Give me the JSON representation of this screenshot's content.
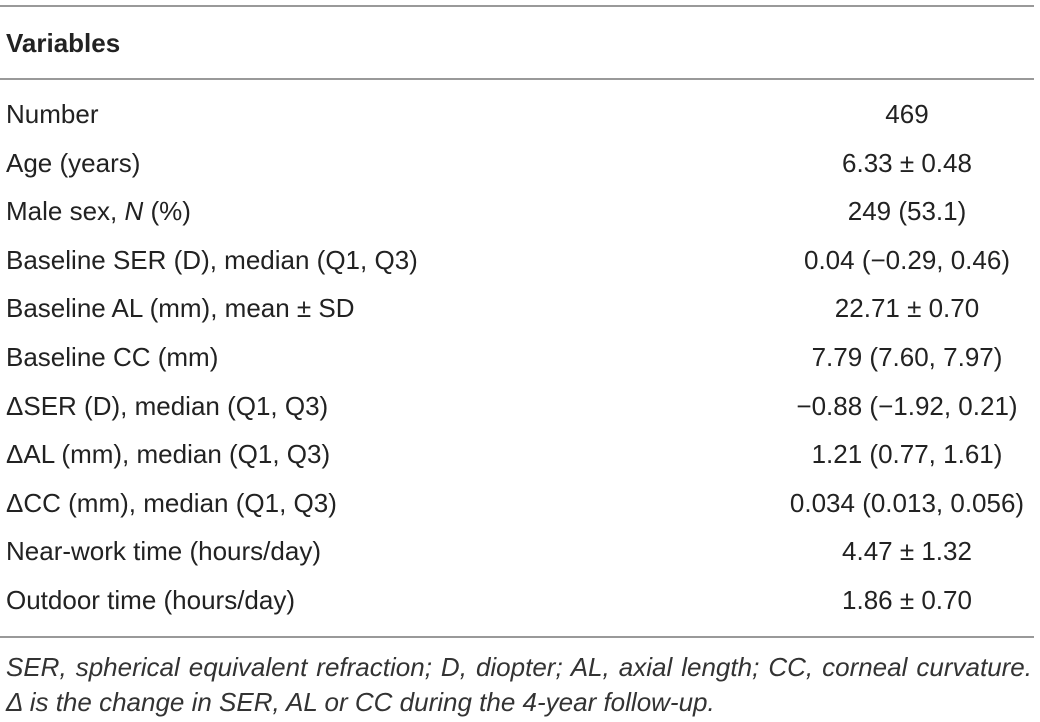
{
  "table": {
    "header": [
      "Variables"
    ],
    "rows": [
      {
        "label": "Number",
        "value": "469"
      },
      {
        "label": "Age (years)",
        "value": "6.33 ± 0.48"
      },
      {
        "label": [
          "Male sex, ",
          "N",
          " (%)"
        ],
        "value": "249 (53.1)"
      },
      {
        "label": "Baseline SER (D), median (Q1, Q3)",
        "value": "0.04 (−0.29, 0.46)"
      },
      {
        "label": "Baseline AL (mm), mean ± SD",
        "value": "22.71 ± 0.70"
      },
      {
        "label": "Baseline CC (mm)",
        "value": "7.79 (7.60, 7.97)"
      },
      {
        "label": "ΔSER (D), median (Q1, Q3)",
        "value": "−0.88 (−1.92, 0.21)"
      },
      {
        "label": "ΔAL (mm), median (Q1, Q3)",
        "value": "1.21 (0.77, 1.61)"
      },
      {
        "label": "ΔCC (mm), median (Q1, Q3)",
        "value": "0.034 (0.013, 0.056)"
      },
      {
        "label": "Near-work time (hours/day)",
        "value": "4.47 ± 1.32"
      },
      {
        "label": "Outdoor time (hours/day)",
        "value": "1.86 ± 0.70"
      }
    ],
    "footnote": "SER, spherical equivalent refraction; D, diopter; AL, axial length; CC, corneal curvature. Δ is the change in SER, AL or CC during the 4-year follow-up."
  }
}
